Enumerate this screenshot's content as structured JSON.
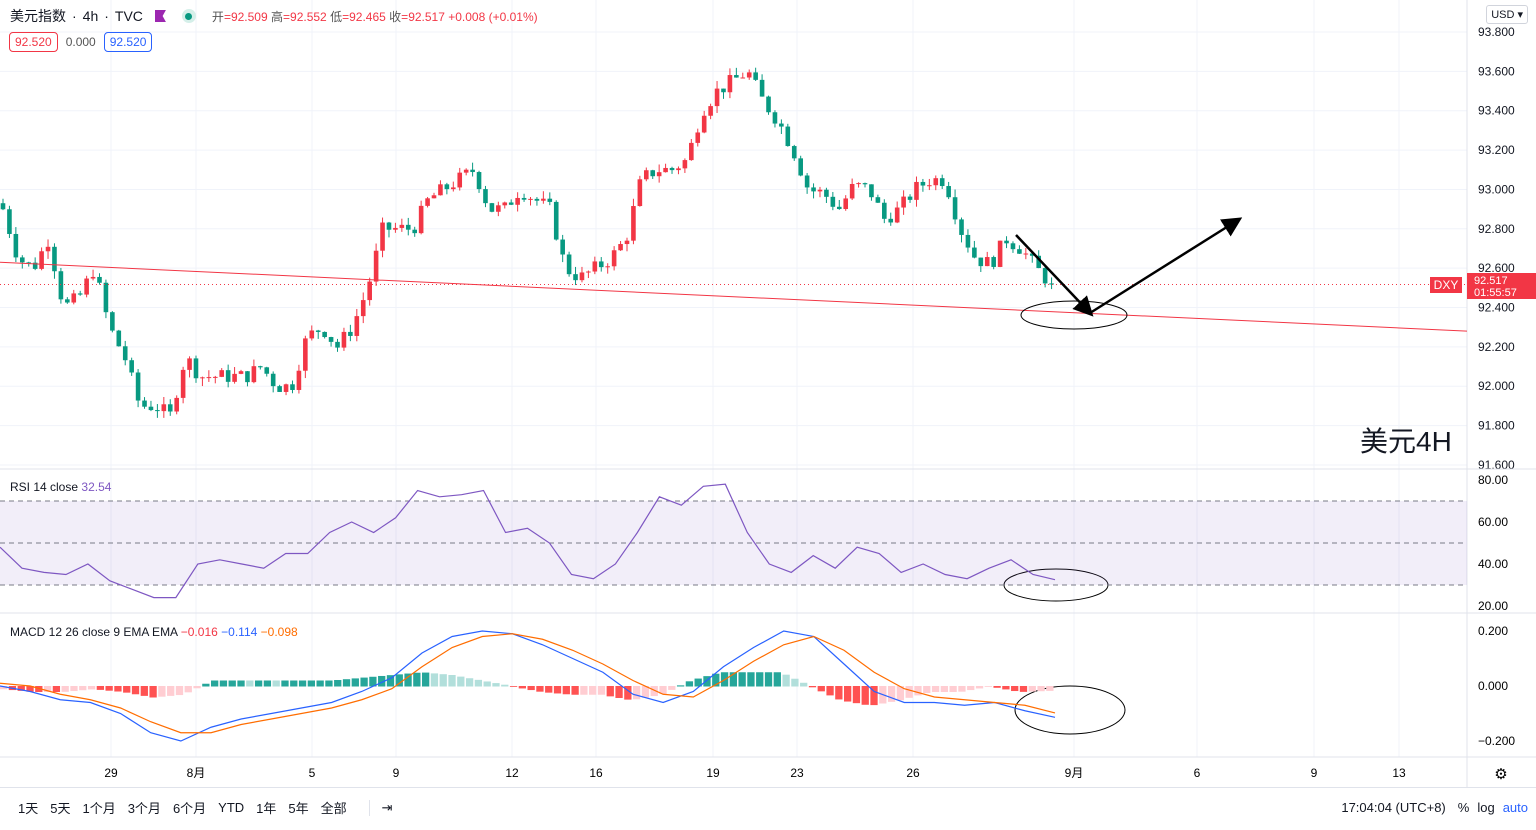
{
  "header": {
    "symbol": "美元指数",
    "interval": "4h",
    "exchange": "TVC",
    "open_label": "开",
    "open": "92.509",
    "high_label": "高",
    "high": "92.552",
    "low_label": "低",
    "low": "92.465",
    "close_label": "收",
    "close": "92.517",
    "change": "+0.008 (+0.01%)",
    "bid": "92.520",
    "spread": "0.000",
    "ask": "92.520"
  },
  "currency": "USD",
  "price_tag": {
    "symbol": "DXY",
    "price": "92.517",
    "countdown": "01:55:57"
  },
  "annotation": "美元4H",
  "rsi": {
    "label": "RSI 14 close",
    "value": "32.54"
  },
  "macd": {
    "label": "MACD 12 26 close 9 EMA EMA",
    "hist": "−0.016",
    "macd": "−0.114",
    "signal": "−0.098"
  },
  "toolbar": {
    "ranges": [
      "1天",
      "5天",
      "1个月",
      "3个月",
      "6个月",
      "YTD",
      "1年",
      "5年",
      "全部"
    ],
    "time": "17:04:04 (UTC+8)",
    "pct": "%",
    "log": "log",
    "auto": "auto"
  },
  "colors": {
    "up": "#f23645",
    "down": "#089981",
    "rsi": "#7e57c2",
    "macd": "#2962ff",
    "signal": "#ff6d00"
  },
  "chart_data": [
    {
      "type": "candlestick",
      "title": "美元指数 4h",
      "ylim": [
        91.6,
        93.8
      ],
      "yticks": [
        "93.800",
        "93.600",
        "93.400",
        "93.200",
        "93.000",
        "92.800",
        "92.600",
        "92.400",
        "92.200",
        "92.000",
        "91.800",
        "91.600"
      ],
      "xticks": [
        "29",
        "8月",
        "5",
        "9",
        "12",
        "16",
        "19",
        "23",
        "26",
        "9月",
        "6",
        "9",
        "13"
      ],
      "closes": [
        92.9,
        92.65,
        92.6,
        92.75,
        92.4,
        92.45,
        92.6,
        92.3,
        92.15,
        91.9,
        91.9,
        91.85,
        92.15,
        92.05,
        92.05,
        92.05,
        92.05,
        92.1,
        92.0,
        92.0,
        92.25,
        92.3,
        92.2,
        92.3,
        92.5,
        92.8,
        92.8,
        92.8,
        92.95,
        93.0,
        93.05,
        93.1,
        92.9,
        92.9,
        93.0,
        92.95,
        92.9,
        92.6,
        92.55,
        92.6,
        92.65,
        92.75,
        93.05,
        93.1,
        93.1,
        93.15,
        93.4,
        93.5,
        93.55,
        93.6,
        93.45,
        93.35,
        93.2,
        93.0,
        92.98,
        92.9,
        93.02,
        93.0,
        92.85,
        92.9,
        93.0,
        93.05,
        93.05,
        92.8,
        92.65,
        92.62,
        92.75,
        92.7,
        92.6,
        92.517
      ],
      "trendline": [
        92.63,
        92.28
      ]
    },
    {
      "type": "line",
      "title": "RSI 14",
      "ylim": [
        20,
        80
      ],
      "yticks": [
        "80.00",
        "60.00",
        "40.00",
        "20.00"
      ],
      "bands": [
        30,
        50,
        70
      ],
      "values": [
        48,
        38,
        36,
        35,
        40,
        32,
        28,
        24,
        24,
        40,
        42,
        40,
        38,
        45,
        45,
        55,
        60,
        55,
        62,
        75,
        72,
        73,
        75,
        55,
        57,
        50,
        35,
        33,
        40,
        55,
        72,
        68,
        77,
        78,
        55,
        40,
        36,
        44,
        38,
        48,
        45,
        36,
        40,
        35,
        33,
        38,
        42,
        35,
        32.54
      ]
    },
    {
      "type": "line",
      "title": "MACD",
      "ylim": [
        -0.2,
        0.2
      ],
      "yticks": [
        "0.200",
        "0.000",
        "−0.200"
      ],
      "macd": [
        0.0,
        -0.02,
        -0.05,
        -0.06,
        -0.1,
        -0.17,
        -0.2,
        -0.15,
        -0.12,
        -0.1,
        -0.08,
        -0.06,
        -0.02,
        0.03,
        0.12,
        0.18,
        0.2,
        0.19,
        0.15,
        0.1,
        0.05,
        -0.03,
        -0.06,
        -0.02,
        0.07,
        0.14,
        0.2,
        0.18,
        0.08,
        -0.02,
        -0.06,
        -0.06,
        -0.07,
        -0.06,
        -0.09,
        -0.114
      ],
      "signal": [
        0.01,
        0.0,
        -0.03,
        -0.05,
        -0.08,
        -0.13,
        -0.17,
        -0.17,
        -0.14,
        -0.12,
        -0.1,
        -0.08,
        -0.05,
        -0.01,
        0.07,
        0.14,
        0.18,
        0.19,
        0.17,
        0.13,
        0.08,
        0.02,
        -0.03,
        -0.04,
        0.02,
        0.09,
        0.15,
        0.18,
        0.13,
        0.05,
        -0.01,
        -0.04,
        -0.05,
        -0.06,
        -0.07,
        -0.098
      ]
    }
  ]
}
